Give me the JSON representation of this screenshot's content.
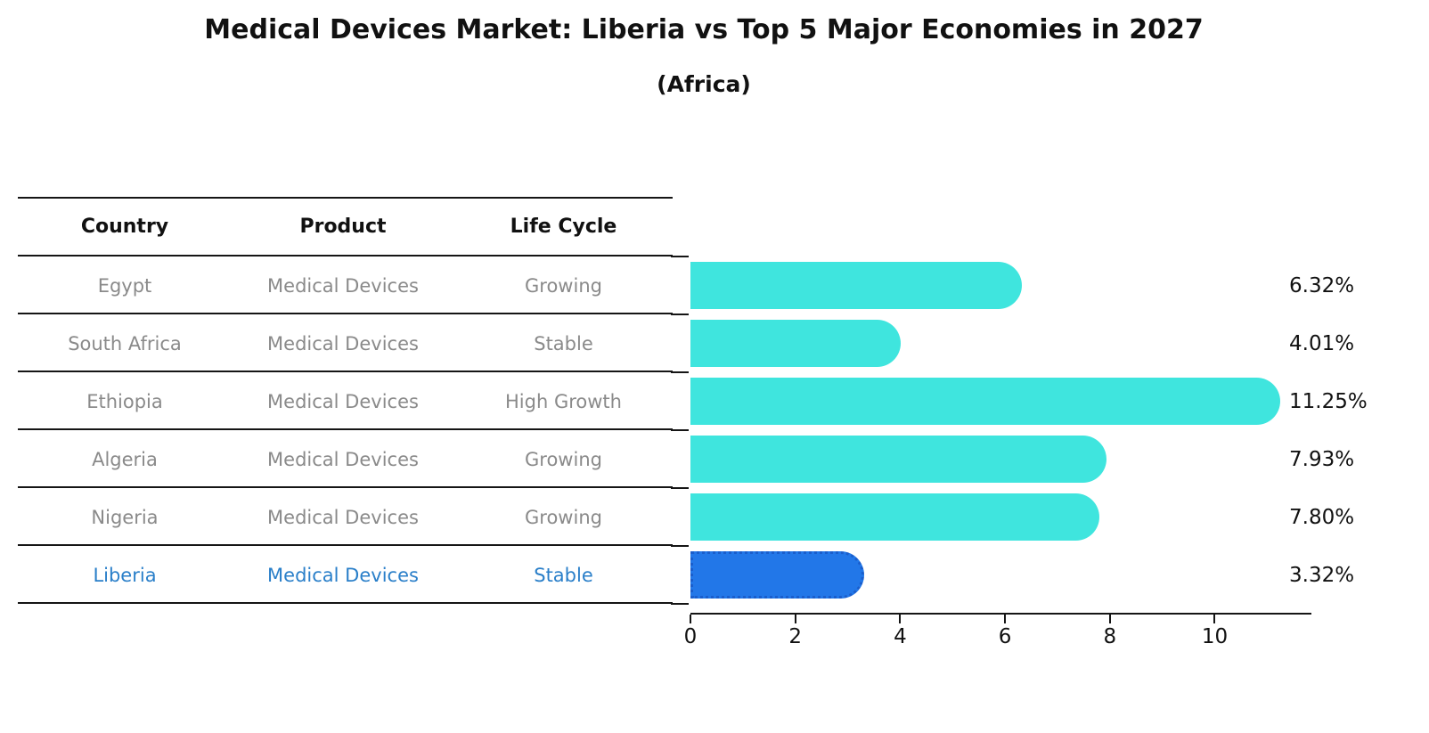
{
  "title": "Medical Devices Market: Liberia vs Top 5 Major Economies in 2027",
  "subtitle": "(Africa)",
  "table": {
    "headers": {
      "country": "Country",
      "product": "Product",
      "life_cycle": "Life Cycle"
    },
    "rows": [
      {
        "country": "Egypt",
        "product": "Medical Devices",
        "life_cycle": "Growing",
        "highlight": false
      },
      {
        "country": "South Africa",
        "product": "Medical Devices",
        "life_cycle": "Stable",
        "highlight": false
      },
      {
        "country": "Ethiopia",
        "product": "Medical Devices",
        "life_cycle": "High Growth",
        "highlight": false
      },
      {
        "country": "Algeria",
        "product": "Medical Devices",
        "life_cycle": "Growing",
        "highlight": false
      },
      {
        "country": "Nigeria",
        "product": "Medical Devices",
        "life_cycle": "Growing",
        "highlight": false
      },
      {
        "country": "Liberia",
        "product": "Medical Devices",
        "life_cycle": "Stable",
        "highlight": true
      }
    ]
  },
  "chart_data": {
    "type": "bar",
    "orientation": "horizontal",
    "title": "Medical Devices Market: Liberia vs Top 5 Major Economies in 2027",
    "subtitle": "(Africa)",
    "categories": [
      "Egypt",
      "South Africa",
      "Ethiopia",
      "Algeria",
      "Nigeria",
      "Liberia"
    ],
    "values": [
      6.32,
      4.01,
      11.25,
      7.93,
      7.8,
      3.32
    ],
    "value_labels": [
      "6.32%",
      "4.01%",
      "11.25%",
      "7.93%",
      "7.80%",
      "3.32%"
    ],
    "xlabel": "",
    "ylabel": "",
    "xlim": [
      0,
      11.81
    ],
    "xticks": [
      "0",
      "2",
      "4",
      "6",
      "8",
      "10"
    ],
    "xtick_values": [
      0,
      2,
      4,
      6,
      8,
      10
    ],
    "grid": false,
    "legend_position": "none",
    "highlight_index": 5,
    "bar_color": "#3FE5DE",
    "highlight_bar_color": "#2277E8",
    "highlight_edge_color": "#1A5ECC"
  },
  "colors": {
    "background": "#FFFFFF",
    "row_text": "#8A8A8A",
    "header_text": "#111111",
    "highlight_text": "#2A7FC9",
    "axis": "#151515"
  }
}
